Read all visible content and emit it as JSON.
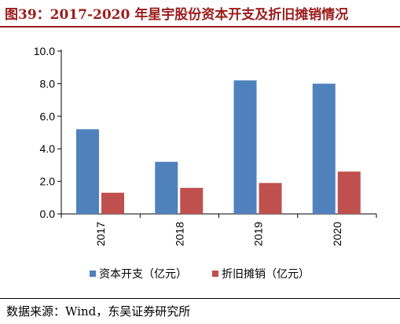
{
  "title": "图39：2017-2020 年星宇股份资本开支及折旧摊销情况",
  "source": "数据来源：Wind，东吴证券研究所",
  "colors": {
    "title": "#9b1c1c",
    "series_1": "#4f81bd",
    "series_2": "#c0504d"
  },
  "chart_data": {
    "type": "bar",
    "categories": [
      "2017",
      "2018",
      "2019",
      "2020"
    ],
    "series": [
      {
        "name": "资本开支（亿元）",
        "values": [
          5.2,
          3.2,
          8.2,
          8.0
        ]
      },
      {
        "name": "折旧摊销（亿元）",
        "values": [
          1.3,
          1.6,
          1.9,
          2.6
        ]
      }
    ],
    "y_ticks": [
      "0.0",
      "2.0",
      "4.0",
      "6.0",
      "8.0",
      "10.0"
    ],
    "ylim": [
      0,
      10
    ],
    "grid": false,
    "legend": "bottom"
  }
}
